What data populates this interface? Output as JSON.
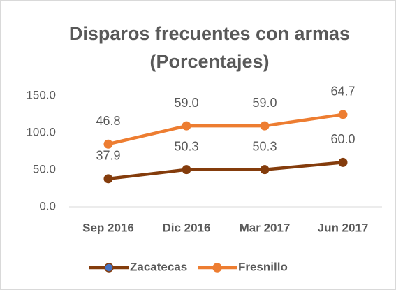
{
  "chart_data": {
    "type": "line",
    "stacked": true,
    "title": [
      "Disparos frecuentes con armas",
      "(Porcentajes)"
    ],
    "categories": [
      "Sep 2016",
      "Dic 2016",
      "Mar 2017",
      "Jun 2017"
    ],
    "series": [
      {
        "name": "Zacatecas",
        "color": "#843c0c",
        "values": [
          37.9,
          50.3,
          50.3,
          60.0
        ],
        "value_labels": [
          "37.9",
          "50.3",
          "50.3",
          "60.0"
        ]
      },
      {
        "name": "Fresnillo",
        "color": "#ed7d31",
        "values": [
          46.8,
          59.0,
          59.0,
          64.7
        ],
        "value_labels": [
          "46.8",
          "59.0",
          "59.0",
          "64.7"
        ]
      }
    ],
    "ylim": [
      0,
      150
    ],
    "yticks": [
      {
        "value": 0,
        "label": "0.0"
      },
      {
        "value": 50,
        "label": "50.0"
      },
      {
        "value": 100,
        "label": "100.0"
      },
      {
        "value": 150,
        "label": "150.0"
      }
    ],
    "grid": false,
    "legend": "bottom"
  }
}
